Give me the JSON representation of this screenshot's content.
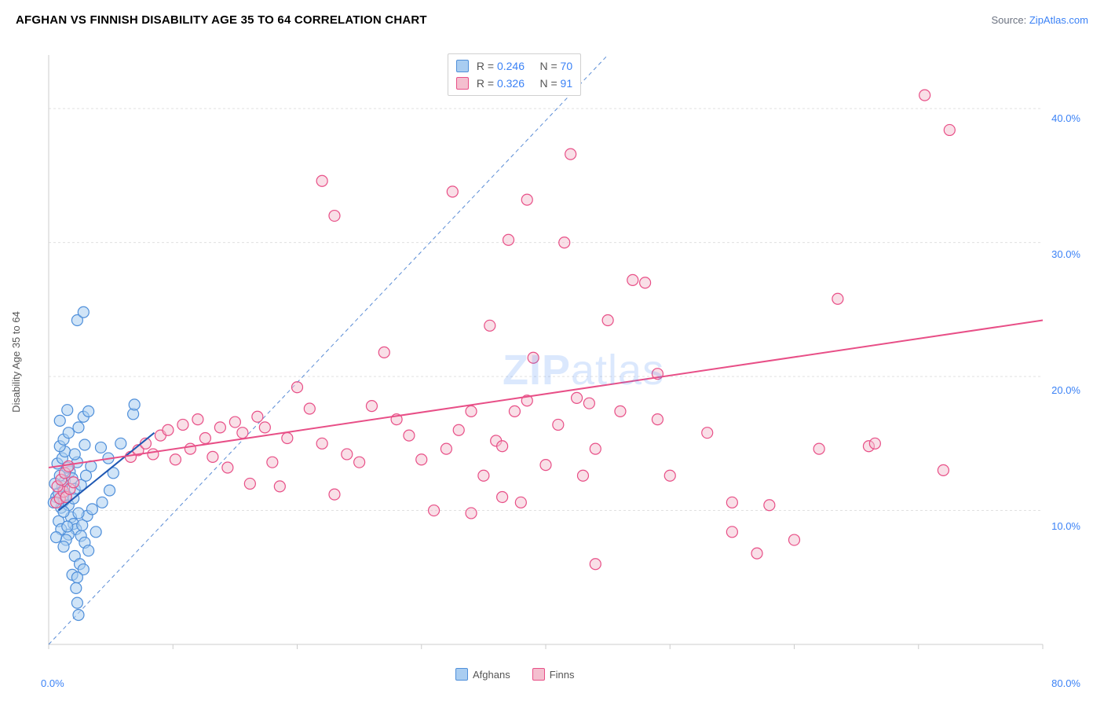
{
  "title": "AFGHAN VS FINNISH DISABILITY AGE 35 TO 64 CORRELATION CHART",
  "source_label": "Source: ",
  "source_value": "ZipAtlas.com",
  "ylabel": "Disability Age 35 to 64",
  "watermark_a": "ZIP",
  "watermark_b": "atlas",
  "chart": {
    "type": "scatter",
    "background_color": "#ffffff",
    "grid_color": "#e0e0e0",
    "grid_dash": "3,3",
    "axis_color": "#cccccc",
    "tick_color": "#3b82f6",
    "xlim": [
      0,
      80
    ],
    "ylim": [
      0,
      44
    ],
    "xticks": [
      0,
      10,
      20,
      30,
      40,
      50,
      60,
      70,
      80
    ],
    "xtick_labels": {
      "0": "0.0%",
      "80": "80.0%"
    },
    "yticks": [
      10,
      20,
      30,
      40
    ],
    "ytick_labels": {
      "10": "10.0%",
      "20": "20.0%",
      "30": "30.0%",
      "40": "40.0%"
    },
    "marker_radius": 7,
    "marker_stroke_width": 1.2,
    "trend_width": 2,
    "ref_line": {
      "color": "#5b8dd6",
      "dash": "5,4",
      "x1": 0,
      "y1": 0,
      "x2": 45,
      "y2": 44
    },
    "series": [
      {
        "key": "afghans",
        "label": "Afghans",
        "fill": "#a9cdf1",
        "stroke": "#4f8fda",
        "fill_opacity": 0.55,
        "R": "0.246",
        "N": "70",
        "trend": {
          "color": "#1f58b3",
          "x1": 0.8,
          "y1": 10.0,
          "x2": 8.5,
          "y2": 15.8
        },
        "points": [
          [
            0.6,
            11.0
          ],
          [
            0.8,
            11.3
          ],
          [
            1.0,
            10.2
          ],
          [
            1.1,
            11.8
          ],
          [
            1.2,
            10.7
          ],
          [
            1.3,
            12.2
          ],
          [
            0.9,
            12.6
          ],
          [
            1.4,
            11.1
          ],
          [
            1.6,
            10.4
          ],
          [
            1.7,
            12.9
          ],
          [
            0.7,
            13.5
          ],
          [
            1.1,
            13.9
          ],
          [
            1.3,
            14.4
          ],
          [
            1.5,
            13.2
          ],
          [
            0.9,
            14.8
          ],
          [
            1.2,
            15.3
          ],
          [
            1.6,
            15.8
          ],
          [
            1.9,
            12.4
          ],
          [
            2.3,
            13.6
          ],
          [
            2.9,
            14.9
          ],
          [
            3.4,
            13.3
          ],
          [
            4.2,
            14.7
          ],
          [
            4.8,
            13.9
          ],
          [
            2.1,
            11.6
          ],
          [
            2.4,
            16.2
          ],
          [
            2.8,
            17.0
          ],
          [
            3.2,
            17.4
          ],
          [
            6.8,
            17.2
          ],
          [
            6.9,
            17.9
          ],
          [
            1.8,
            9.5
          ],
          [
            2.0,
            9.0
          ],
          [
            2.2,
            8.6
          ],
          [
            2.6,
            8.1
          ],
          [
            2.9,
            7.6
          ],
          [
            3.2,
            7.0
          ],
          [
            1.6,
            8.2
          ],
          [
            1.4,
            7.8
          ],
          [
            1.2,
            7.3
          ],
          [
            2.1,
            6.6
          ],
          [
            2.5,
            6.0
          ],
          [
            2.8,
            5.6
          ],
          [
            1.9,
            5.2
          ],
          [
            2.3,
            5.0
          ],
          [
            2.7,
            8.9
          ],
          [
            3.1,
            9.6
          ],
          [
            3.5,
            10.1
          ],
          [
            3.8,
            8.4
          ],
          [
            2.0,
            10.9
          ],
          [
            2.4,
            9.8
          ],
          [
            0.8,
            9.2
          ],
          [
            1.0,
            8.6
          ],
          [
            1.2,
            9.9
          ],
          [
            1.5,
            8.8
          ],
          [
            0.6,
            8.0
          ],
          [
            0.5,
            12.0
          ],
          [
            0.4,
            10.6
          ],
          [
            2.6,
            11.9
          ],
          [
            3.0,
            12.6
          ],
          [
            0.9,
            16.7
          ],
          [
            1.5,
            17.5
          ],
          [
            2.1,
            14.2
          ],
          [
            2.3,
            3.1
          ],
          [
            2.4,
            2.2
          ],
          [
            2.2,
            4.2
          ],
          [
            2.3,
            24.2
          ],
          [
            2.8,
            24.8
          ],
          [
            4.9,
            11.5
          ],
          [
            4.3,
            10.6
          ],
          [
            5.2,
            12.8
          ],
          [
            5.8,
            15.0
          ]
        ]
      },
      {
        "key": "finns",
        "label": "Finns",
        "fill": "#f4bfcf",
        "stroke": "#e84f87",
        "fill_opacity": 0.5,
        "R": "0.326",
        "N": "91",
        "trend": {
          "color": "#e84f87",
          "x1": 0.0,
          "y1": 13.2,
          "x2": 80.0,
          "y2": 24.2
        },
        "points": [
          [
            0.6,
            10.6
          ],
          [
            0.9,
            10.9
          ],
          [
            1.2,
            11.4
          ],
          [
            0.7,
            11.8
          ],
          [
            1.0,
            12.3
          ],
          [
            1.4,
            11.0
          ],
          [
            1.7,
            11.6
          ],
          [
            2.0,
            12.1
          ],
          [
            1.3,
            12.8
          ],
          [
            1.6,
            13.3
          ],
          [
            6.6,
            14.0
          ],
          [
            7.2,
            14.5
          ],
          [
            7.8,
            15.0
          ],
          [
            8.4,
            14.2
          ],
          [
            9.0,
            15.6
          ],
          [
            9.6,
            16.0
          ],
          [
            10.2,
            13.8
          ],
          [
            10.8,
            16.4
          ],
          [
            11.4,
            14.6
          ],
          [
            12.0,
            16.8
          ],
          [
            12.6,
            15.4
          ],
          [
            13.2,
            14.0
          ],
          [
            13.8,
            16.2
          ],
          [
            14.4,
            13.2
          ],
          [
            15.0,
            16.6
          ],
          [
            15.6,
            15.8
          ],
          [
            16.2,
            12.0
          ],
          [
            16.8,
            17.0
          ],
          [
            17.4,
            16.2
          ],
          [
            18.0,
            13.6
          ],
          [
            18.6,
            11.8
          ],
          [
            19.2,
            15.4
          ],
          [
            20.0,
            19.2
          ],
          [
            21.0,
            17.6
          ],
          [
            22.0,
            15.0
          ],
          [
            23.0,
            11.2
          ],
          [
            24.0,
            14.2
          ],
          [
            25.0,
            13.6
          ],
          [
            26.0,
            17.8
          ],
          [
            27.0,
            21.8
          ],
          [
            28.0,
            16.8
          ],
          [
            29.0,
            15.6
          ],
          [
            30.0,
            13.8
          ],
          [
            31.0,
            10.0
          ],
          [
            32.0,
            14.6
          ],
          [
            33.0,
            16.0
          ],
          [
            34.0,
            17.4
          ],
          [
            35.0,
            12.6
          ],
          [
            35.5,
            23.8
          ],
          [
            36.0,
            15.2
          ],
          [
            36.5,
            14.8
          ],
          [
            37.0,
            30.2
          ],
          [
            37.5,
            17.4
          ],
          [
            38.0,
            10.6
          ],
          [
            38.5,
            18.2
          ],
          [
            39.0,
            21.4
          ],
          [
            40.0,
            13.4
          ],
          [
            41.0,
            16.4
          ],
          [
            42.0,
            36.6
          ],
          [
            42.5,
            18.4
          ],
          [
            43.0,
            12.6
          ],
          [
            44.0,
            14.6
          ],
          [
            45.0,
            24.2
          ],
          [
            46.0,
            17.4
          ],
          [
            47.0,
            27.2
          ],
          [
            48.0,
            27.0
          ],
          [
            49.0,
            20.2
          ],
          [
            55.0,
            8.4
          ],
          [
            55.0,
            10.6
          ],
          [
            22.0,
            34.6
          ],
          [
            32.5,
            33.8
          ],
          [
            38.5,
            33.2
          ],
          [
            23.0,
            32.0
          ],
          [
            43.5,
            18.0
          ],
          [
            50.0,
            12.6
          ],
          [
            53.0,
            15.8
          ],
          [
            57.0,
            6.8
          ],
          [
            58.0,
            10.4
          ],
          [
            60.0,
            7.8
          ],
          [
            62.0,
            14.6
          ],
          [
            63.5,
            25.8
          ],
          [
            66.0,
            14.8
          ],
          [
            66.5,
            15.0
          ],
          [
            70.5,
            41.0
          ],
          [
            72.0,
            13.0
          ],
          [
            72.5,
            38.4
          ],
          [
            36.5,
            11.0
          ],
          [
            44.0,
            6.0
          ],
          [
            49.0,
            16.8
          ],
          [
            41.5,
            30.0
          ],
          [
            34.0,
            9.8
          ]
        ]
      }
    ],
    "bottom_legend": [
      "Afghans",
      "Finns"
    ]
  },
  "legend_box": {
    "rows": [
      {
        "sw_fill": "#a9cdf1",
        "sw_stroke": "#4f8fda",
        "R_label": "R =",
        "R": "0.246",
        "N_label": "N =",
        "N": "70"
      },
      {
        "sw_fill": "#f4bfcf",
        "sw_stroke": "#e84f87",
        "R_label": "R =",
        "R": "0.326",
        "N_label": "N =",
        "91": "91",
        "Nv": "91"
      }
    ]
  }
}
